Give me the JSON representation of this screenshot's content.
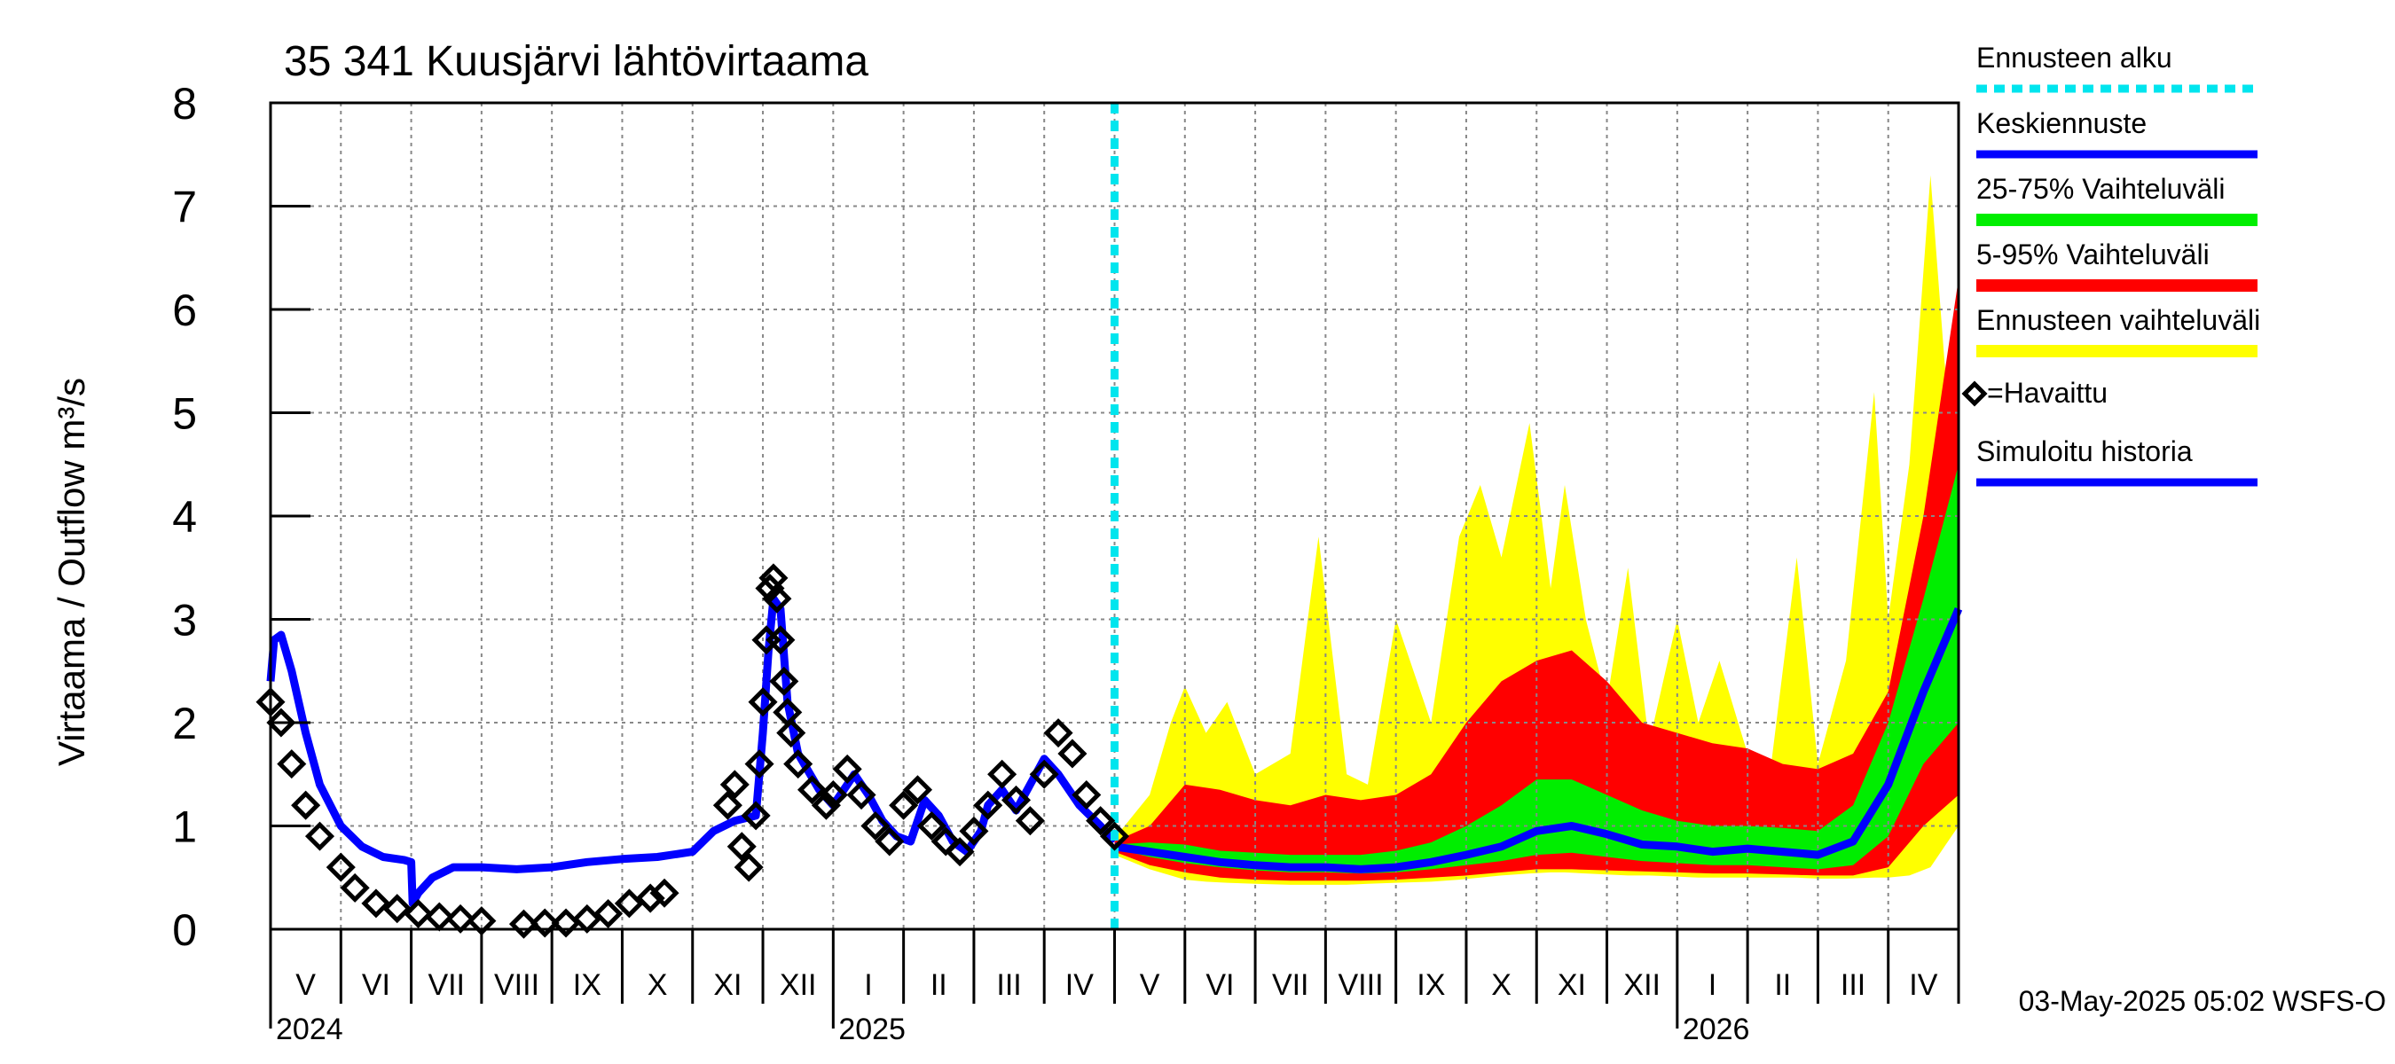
{
  "chart_data": {
    "type": "area",
    "title": "35 341 Kuusjärvi lähtövirtaama",
    "ylabel": "Virtaama / Outflow    m³/s",
    "xlabel": "",
    "ylim": [
      0,
      8
    ],
    "yticks": [
      0,
      1,
      2,
      3,
      4,
      5,
      6,
      7,
      8
    ],
    "xlim": [
      0,
      24
    ],
    "month_labels": [
      "V",
      "VI",
      "VII",
      "VIII",
      "IX",
      "X",
      "XI",
      "XII",
      "I",
      "II",
      "III",
      "IV",
      "V",
      "VI",
      "VII",
      "VIII",
      "IX",
      "X",
      "XI",
      "XII",
      "I",
      "II",
      "III",
      "IV"
    ],
    "year_labels": [
      {
        "label": "2024",
        "x": 0
      },
      {
        "label": "2025",
        "x": 8
      },
      {
        "label": "2026",
        "x": 20
      }
    ],
    "forecast_start": 12.0,
    "timestamp": "03-May-2025 05:02 WSFS-O",
    "legend": {
      "placement": "right",
      "items": [
        {
          "label": "Ennusteen alku",
          "color": "#00e5ee",
          "style": "dashed"
        },
        {
          "label": "Keskiennuste",
          "color": "#0000ff",
          "style": "line"
        },
        {
          "label": "25-75% Vaihteluväli",
          "color": "#00ee00",
          "style": "band"
        },
        {
          "label": "5-95% Vaihteluväli",
          "color": "#ff0000",
          "style": "band"
        },
        {
          "label": "Ennusteen vaihteluväli",
          "color": "#ffff00",
          "style": "band"
        },
        {
          "label": "=Havaittu",
          "color": "#000000",
          "style": "marker"
        },
        {
          "label": "Simuloitu historia",
          "color": "#0000ff",
          "style": "line"
        }
      ]
    },
    "series": [
      {
        "name": "Simuloitu historia",
        "color": "#0000ff",
        "x": [
          0,
          0.05,
          0.15,
          0.3,
          0.5,
          0.7,
          1.0,
          1.3,
          1.6,
          1.9,
          2.0,
          2.02,
          2.1,
          2.3,
          2.6,
          3.0,
          3.5,
          4.0,
          4.5,
          5.0,
          5.5,
          6.0,
          6.3,
          6.6,
          6.9,
          7.0,
          7.08,
          7.15,
          7.25,
          7.35,
          7.5,
          7.8,
          8.0,
          8.3,
          8.5,
          8.7,
          8.9,
          9.1,
          9.3,
          9.5,
          9.7,
          9.9,
          10.1,
          10.2,
          10.4,
          10.6,
          10.8,
          11.0,
          11.2,
          11.5,
          11.8,
          12.0
        ],
        "y": [
          2.4,
          2.8,
          2.85,
          2.5,
          1.9,
          1.4,
          1.0,
          0.8,
          0.7,
          0.67,
          0.65,
          0.25,
          0.35,
          0.5,
          0.6,
          0.6,
          0.58,
          0.6,
          0.65,
          0.68,
          0.7,
          0.75,
          0.95,
          1.05,
          1.1,
          1.9,
          2.7,
          3.2,
          3.1,
          2.2,
          1.7,
          1.35,
          1.2,
          1.5,
          1.3,
          1.05,
          0.9,
          0.85,
          1.25,
          1.1,
          0.85,
          0.75,
          0.95,
          1.2,
          1.35,
          1.15,
          1.4,
          1.65,
          1.5,
          1.2,
          1.0,
          0.85
        ]
      },
      {
        "name": "Havaittu",
        "color": "#000000",
        "x": [
          0,
          0.15,
          0.3,
          0.5,
          0.7,
          1.0,
          1.2,
          1.5,
          1.8,
          2.1,
          2.4,
          2.7,
          3.0,
          3.3,
          3.6,
          3.9,
          4.2,
          4.5,
          4.8,
          5.1,
          5.4,
          5.6,
          6.5,
          6.6,
          6.7,
          6.8,
          6.9,
          6.95,
          7.0,
          7.05,
          7.1,
          7.15,
          7.2,
          7.25,
          7.3,
          7.35,
          7.4,
          7.5,
          7.7,
          7.9,
          8.0,
          8.2,
          8.4,
          8.6,
          8.8,
          9.0,
          9.2,
          9.4,
          9.6,
          9.8,
          10.0,
          10.2,
          10.4,
          10.6,
          10.8,
          11.0,
          11.2,
          11.4,
          11.6,
          11.8,
          12.0
        ],
        "y": [
          2.2,
          2.0,
          1.6,
          1.2,
          0.9,
          0.6,
          0.4,
          0.25,
          0.2,
          0.15,
          0.12,
          0.1,
          0.08,
          null,
          0.05,
          0.06,
          0.06,
          0.1,
          0.15,
          0.25,
          0.3,
          0.35,
          1.2,
          1.4,
          0.8,
          0.6,
          1.1,
          1.6,
          2.2,
          2.8,
          3.3,
          3.4,
          3.2,
          2.8,
          2.4,
          2.1,
          1.9,
          1.6,
          1.35,
          1.2,
          1.3,
          1.55,
          1.3,
          1.0,
          0.85,
          1.2,
          1.35,
          1.0,
          0.85,
          0.75,
          0.95,
          1.2,
          1.5,
          1.25,
          1.05,
          1.5,
          1.9,
          1.7,
          1.3,
          1.05,
          0.9
        ]
      },
      {
        "name": "Keskiennuste",
        "color": "#0000ff",
        "x": [
          12.0,
          12.5,
          13,
          13.5,
          14,
          14.5,
          15,
          15.5,
          16,
          16.5,
          17,
          17.5,
          18,
          18.5,
          19,
          19.5,
          20,
          20.5,
          21,
          21.5,
          22,
          22.5,
          23,
          23.5,
          24
        ],
        "y": [
          0.8,
          0.75,
          0.7,
          0.65,
          0.62,
          0.6,
          0.6,
          0.58,
          0.6,
          0.65,
          0.72,
          0.8,
          0.95,
          1.0,
          0.92,
          0.82,
          0.8,
          0.75,
          0.78,
          0.75,
          0.72,
          0.85,
          1.4,
          2.3,
          3.1
        ]
      },
      {
        "name": "25-75% Vaihteluväli",
        "color": "#00ee00",
        "x": [
          12.0,
          12.5,
          13,
          13.5,
          14,
          14.5,
          15,
          15.5,
          16,
          16.5,
          17,
          17.5,
          18,
          18.5,
          19,
          19.5,
          20,
          20.5,
          21,
          21.5,
          22,
          22.5,
          23,
          23.5,
          24
        ],
        "low": [
          0.78,
          0.7,
          0.64,
          0.6,
          0.57,
          0.55,
          0.55,
          0.54,
          0.55,
          0.58,
          0.62,
          0.66,
          0.72,
          0.74,
          0.7,
          0.66,
          0.64,
          0.62,
          0.62,
          0.6,
          0.58,
          0.62,
          0.9,
          1.6,
          2.0
        ],
        "high": [
          0.82,
          0.84,
          0.82,
          0.76,
          0.74,
          0.72,
          0.72,
          0.72,
          0.76,
          0.84,
          1.0,
          1.2,
          1.45,
          1.45,
          1.3,
          1.15,
          1.05,
          1.0,
          1.0,
          0.98,
          0.95,
          1.2,
          2.0,
          3.2,
          4.5
        ]
      },
      {
        "name": "5-95% Vaihteluväli",
        "color": "#ff0000",
        "x": [
          12.0,
          12.5,
          13,
          13.5,
          14,
          14.5,
          15,
          15.5,
          16,
          16.5,
          17,
          17.5,
          18,
          18.5,
          19,
          19.5,
          20,
          20.5,
          21,
          21.5,
          22,
          22.5,
          23,
          23.5,
          24
        ],
        "low": [
          0.75,
          0.62,
          0.55,
          0.5,
          0.48,
          0.47,
          0.47,
          0.47,
          0.48,
          0.5,
          0.52,
          0.55,
          0.58,
          0.58,
          0.57,
          0.56,
          0.55,
          0.54,
          0.54,
          0.53,
          0.52,
          0.52,
          0.6,
          1.0,
          1.3
        ],
        "high": [
          0.85,
          1.0,
          1.4,
          1.35,
          1.25,
          1.2,
          1.3,
          1.25,
          1.3,
          1.5,
          2.0,
          2.4,
          2.6,
          2.7,
          2.4,
          2.0,
          1.9,
          1.8,
          1.75,
          1.6,
          1.55,
          1.7,
          2.3,
          4.0,
          6.3
        ]
      },
      {
        "name": "Ennusteen vaihteluväli",
        "color": "#ffff00",
        "x": [
          12.0,
          12.5,
          12.8,
          13.0,
          13.3,
          13.6,
          14.0,
          14.5,
          14.9,
          15.3,
          15.6,
          16.0,
          16.5,
          16.9,
          17.2,
          17.5,
          17.9,
          18.2,
          18.4,
          18.7,
          19.0,
          19.3,
          19.6,
          20.0,
          20.3,
          20.6,
          21.0,
          21.3,
          21.7,
          22.0,
          22.4,
          22.8,
          23.0,
          23.3,
          23.6,
          23.8,
          24.0
        ],
        "low": [
          0.72,
          0.58,
          0.52,
          0.48,
          0.46,
          0.45,
          0.44,
          0.43,
          0.43,
          0.43,
          0.44,
          0.45,
          0.46,
          0.48,
          0.5,
          0.52,
          0.54,
          0.55,
          0.55,
          0.54,
          0.53,
          0.52,
          0.52,
          0.51,
          0.5,
          0.5,
          0.5,
          0.5,
          0.5,
          0.49,
          0.49,
          0.5,
          0.5,
          0.52,
          0.6,
          0.8,
          1.0
        ],
        "high": [
          0.88,
          1.3,
          2.0,
          2.35,
          1.9,
          2.2,
          1.5,
          1.7,
          3.8,
          1.5,
          1.4,
          3.0,
          2.0,
          3.8,
          4.3,
          3.6,
          4.9,
          3.3,
          4.3,
          3.0,
          2.2,
          3.5,
          1.8,
          3.0,
          2.0,
          2.6,
          1.7,
          1.4,
          3.6,
          1.6,
          2.6,
          5.2,
          3.0,
          4.5,
          7.3,
          5.5,
          4.0
        ]
      }
    ]
  }
}
